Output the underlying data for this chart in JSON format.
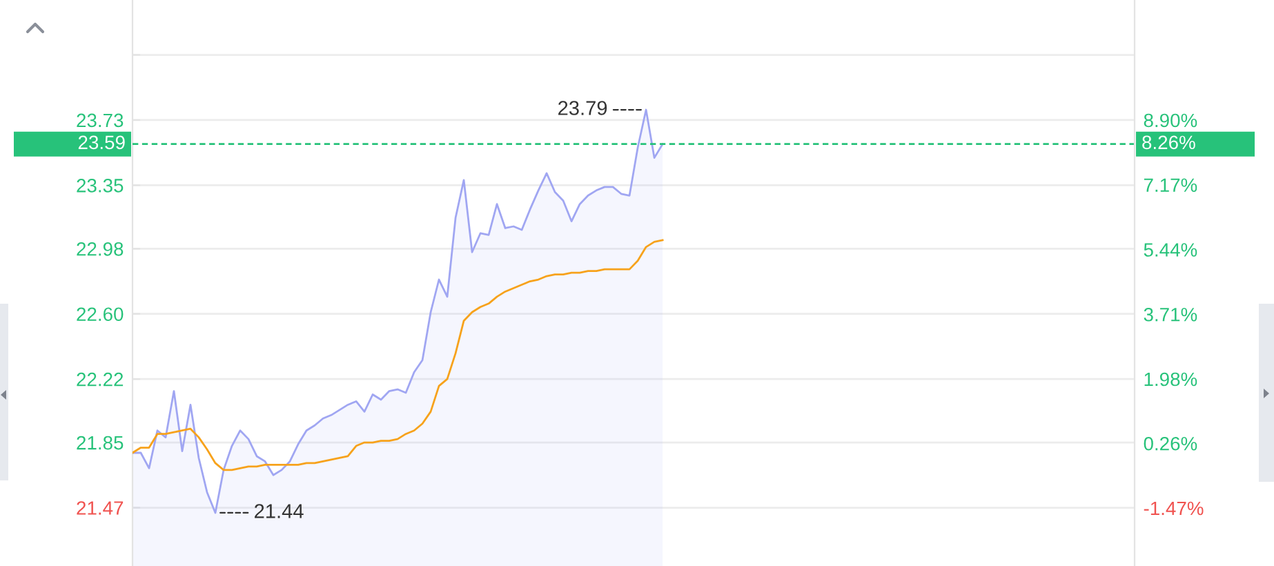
{
  "chart_data": {
    "type": "line",
    "categories": [
      null,
      null,
      null,
      null,
      null,
      null,
      null,
      null,
      null,
      null,
      null,
      null,
      null,
      null,
      null,
      null,
      null,
      null,
      null,
      null,
      null,
      null,
      null,
      null,
      null,
      null,
      null,
      null,
      null,
      null,
      null,
      null,
      null,
      null,
      null,
      null,
      null,
      null,
      null,
      null,
      null,
      null,
      null,
      null,
      null,
      null,
      null,
      null,
      null,
      null,
      null,
      null,
      null,
      null,
      null,
      null,
      null,
      null,
      null,
      null,
      null,
      null,
      null,
      null,
      null
    ],
    "series": [
      {
        "type": "area",
        "color": "#a0a6f2",
        "values": [
          21.79,
          21.79,
          21.7,
          21.92,
          21.88,
          22.15,
          21.8,
          22.07,
          21.76,
          21.56,
          21.44,
          21.69,
          21.83,
          21.92,
          21.87,
          21.77,
          21.74,
          21.66,
          21.69,
          21.74,
          21.84,
          21.92,
          21.95,
          21.99,
          22.01,
          22.04,
          22.07,
          22.09,
          22.03,
          22.13,
          22.1,
          22.15,
          22.16,
          22.14,
          22.26,
          22.33,
          22.61,
          22.8,
          22.7,
          23.16,
          23.38,
          22.96,
          23.07,
          23.06,
          23.24,
          23.1,
          23.11,
          23.09,
          23.21,
          23.32,
          23.42,
          23.31,
          23.26,
          23.14,
          23.24,
          23.29,
          23.32,
          23.34,
          23.34,
          23.3,
          23.29,
          23.57,
          23.79,
          23.51,
          23.59
        ]
      },
      {
        "color": "#f7a21b",
        "values": [
          21.79,
          21.82,
          21.82,
          21.9,
          21.9,
          21.91,
          21.92,
          21.93,
          21.88,
          21.81,
          21.73,
          21.69,
          21.69,
          21.7,
          21.71,
          21.71,
          21.72,
          21.72,
          21.72,
          21.72,
          21.72,
          21.73,
          21.73,
          21.74,
          21.75,
          21.76,
          21.77,
          21.83,
          21.85,
          21.85,
          21.86,
          21.86,
          21.87,
          21.9,
          21.92,
          21.96,
          22.03,
          22.18,
          22.22,
          22.37,
          22.56,
          22.61,
          22.64,
          22.66,
          22.7,
          22.73,
          22.75,
          22.77,
          22.79,
          22.8,
          22.82,
          22.83,
          22.83,
          22.84,
          22.84,
          22.85,
          22.85,
          22.86,
          22.86,
          22.86,
          22.86,
          22.91,
          22.99,
          23.02,
          23.03
        ]
      }
    ],
    "ylim": [
      21.13,
      24.43
    ],
    "yticks": [
      21.47,
      21.85,
      22.22,
      {
        "value": 22.6,
        "label": "22.60"
      },
      22.98,
      23.35,
      23.73,
      {
        "value": 24.11,
        "label": null
      }
    ],
    "y2lim": [
      -3.02,
      12.11
    ],
    "y2ticks": [
      {
        "value": -1.47,
        "label": "-1.47%"
      },
      {
        "value": 0.26,
        "label": "0.26%"
      },
      {
        "value": 1.98,
        "label": "1.98%"
      },
      {
        "value": 3.71,
        "label": "3.71%"
      },
      {
        "value": 5.44,
        "label": "5.44%"
      },
      {
        "value": 7.17,
        "label": "7.17%"
      },
      {
        "value": 8.9,
        "label": "8.90%"
      }
    ],
    "ref_lines": [
      {
        "axis": "y",
        "value": 23.59,
        "label": "23.59",
        "color": "#27c27a",
        "line_style": "dashed"
      }
    ],
    "annotations": [
      "23.79",
      "21.44",
      "8.26%"
    ],
    "grid": "y"
  }
}
